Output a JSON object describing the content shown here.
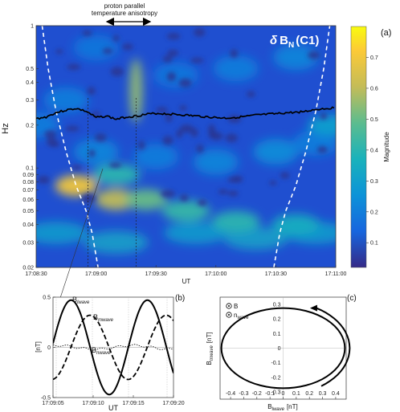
{
  "chart_data": [
    {
      "type": "heatmap",
      "panel_label": "(a)",
      "title_symbol": "δ",
      "title_main": "B",
      "title_sub": "N",
      "title_suffix": "(C1)",
      "xlabel": "UT",
      "ylabel": "Hz",
      "colorbar_label": "Magnitude",
      "yscale": "log",
      "ylim": [
        0.02,
        1
      ],
      "xlim_seconds_from_start": [
        0,
        150
      ],
      "x_tick_labels": [
        "17:08:30",
        "17:09:00",
        "17:09:30",
        "17:10:00",
        "17:10:30",
        "17:11:00"
      ],
      "y_tick_values": [
        1,
        0.5,
        0.4,
        0.3,
        0.2,
        0.1,
        0.09,
        0.08,
        0.07,
        0.06,
        0.05,
        0.04,
        0.03,
        0.02
      ],
      "y_tick_labels": [
        "1",
        "0.5",
        "0.4",
        "0.3",
        "0.2",
        "0.1",
        "0.09",
        "0.08",
        "0.07",
        "0.06",
        "0.05",
        "0.04",
        "0.03",
        "0.02"
      ],
      "colorbar_ticks": [
        "0.1",
        "0.2",
        "0.3",
        "0.4",
        "0.5",
        "0.6",
        "0.7"
      ],
      "colorbar_range": [
        0.02,
        0.8
      ],
      "annotation_text_line1": "proton parallel",
      "annotation_text_line2": "temperature anisotropy",
      "annotation_interval_seconds": [
        26,
        50
      ],
      "proton_cyclotron_frequency_hz": [
        [
          0,
          0.222
        ],
        [
          5,
          0.228
        ],
        [
          10,
          0.245
        ],
        [
          15,
          0.255
        ],
        [
          20,
          0.262
        ],
        [
          25,
          0.25
        ],
        [
          30,
          0.226
        ],
        [
          35,
          0.232
        ],
        [
          40,
          0.22
        ],
        [
          45,
          0.228
        ],
        [
          50,
          0.232
        ],
        [
          55,
          0.238
        ],
        [
          60,
          0.242
        ],
        [
          65,
          0.24
        ],
        [
          70,
          0.238
        ],
        [
          75,
          0.235
        ],
        [
          80,
          0.232
        ],
        [
          85,
          0.229
        ],
        [
          90,
          0.226
        ],
        [
          95,
          0.224
        ],
        [
          100,
          0.227
        ],
        [
          105,
          0.23
        ],
        [
          110,
          0.235
        ],
        [
          115,
          0.238
        ],
        [
          120,
          0.24
        ],
        [
          125,
          0.244
        ],
        [
          130,
          0.246
        ],
        [
          135,
          0.25
        ],
        [
          140,
          0.258
        ],
        [
          145,
          0.262
        ],
        [
          150,
          0.265
        ]
      ],
      "cone_of_influence_hz": [
        [
          3,
          1
        ],
        [
          6,
          0.5
        ],
        [
          10,
          0.25
        ],
        [
          15,
          0.13
        ],
        [
          20,
          0.075
        ],
        [
          25,
          0.05
        ],
        [
          28,
          0.035
        ],
        [
          31,
          0.02
        ],
        [
          119,
          0.02
        ],
        [
          122,
          0.035
        ],
        [
          125,
          0.05
        ],
        [
          130,
          0.075
        ],
        [
          135,
          0.13
        ],
        [
          140,
          0.25
        ],
        [
          144,
          0.5
        ],
        [
          147,
          1
        ]
      ],
      "power_features": [
        {
          "t": 50,
          "f_hz": 0.35,
          "magnitude": 0.55
        },
        {
          "t": 20,
          "f_hz": 0.075,
          "magnitude": 0.7
        },
        {
          "t": 40,
          "f_hz": 0.06,
          "magnitude": 0.6
        },
        {
          "t": 55,
          "f_hz": 0.06,
          "magnitude": 0.5
        },
        {
          "t": 75,
          "f_hz": 0.05,
          "magnitude": 0.42
        },
        {
          "t": 100,
          "f_hz": 0.042,
          "magnitude": 0.4
        },
        {
          "t": 130,
          "f_hz": 0.04,
          "magnitude": 0.35
        },
        {
          "t": 40,
          "f_hz": 0.09,
          "magnitude": 0.4
        },
        {
          "t": 148,
          "f_hz": 0.2,
          "magnitude": 0.3
        }
      ]
    },
    {
      "type": "line",
      "panel_label": "(b)",
      "xlabel": "UT",
      "ylabel": "[nT]",
      "ylim": [
        -0.5,
        0.5
      ],
      "y_ticks": [
        -0.5,
        0,
        0.5
      ],
      "y_tick_labels": [
        "-0.5",
        "0",
        "0.5"
      ],
      "x_range_seconds": [
        5,
        20
      ],
      "x_tick_labels": [
        "17:09:05",
        "17:09:10",
        "17:09:15",
        "17:09:20"
      ],
      "series": [
        {
          "name_main": "B",
          "name_sub": "lwave",
          "style": "solid",
          "amplitude": 0.47,
          "period_s": 9.5,
          "phase_peak_s": 7.25
        },
        {
          "name_main": "B",
          "name_sub": "mwave",
          "style": "dashed",
          "amplitude": 0.32,
          "period_s": 9.5,
          "phase_peak_s": 9.6
        },
        {
          "name_main": "B",
          "name_sub": "nwave",
          "style": "dotted",
          "amplitude": 0.02,
          "period_s": 9.5,
          "phase_peak_s": 5.5
        }
      ],
      "vertical_markers_seconds": [
        5.4,
        9.9,
        14.4,
        19.2
      ]
    },
    {
      "type": "line",
      "panel_label": "(c)",
      "xlabel_main": "B",
      "xlabel_sub": "lwave",
      "xlabel_unit": "[nT]",
      "ylabel_main": "B",
      "ylabel_sub": "mwave",
      "ylabel_unit": "[nT]",
      "xlim": [
        -0.48,
        0.48
      ],
      "ylim": [
        -0.35,
        0.35
      ],
      "x_ticks": [
        -0.4,
        -0.3,
        -0.2,
        -0.1,
        0,
        0.1,
        0.2,
        0.3,
        0.4
      ],
      "x_tick_labels": [
        "-0.4",
        "-0.3",
        "-0.2",
        "-0.1",
        "0",
        "0.1",
        "0.2",
        "0.3",
        "0.4"
      ],
      "y_ticks": [
        -0.3,
        -0.2,
        -0.1,
        0,
        0.1,
        0.2,
        0.3
      ],
      "y_tick_labels": [
        "-0.3",
        "-0.2",
        "-0.1",
        "0",
        "0.1",
        "0.2",
        "0.3"
      ],
      "hodogram": {
        "semi_major_nT": 0.47,
        "semi_minor_nT": 0.275
      },
      "legend": [
        {
          "symbol": "dot-circle",
          "text_main": "B",
          "text_sub": ""
        },
        {
          "symbol": "dot-circle",
          "text_main": "n",
          "text_sub": "wave"
        }
      ],
      "rotation": "counter-clockwise arrow"
    }
  ]
}
